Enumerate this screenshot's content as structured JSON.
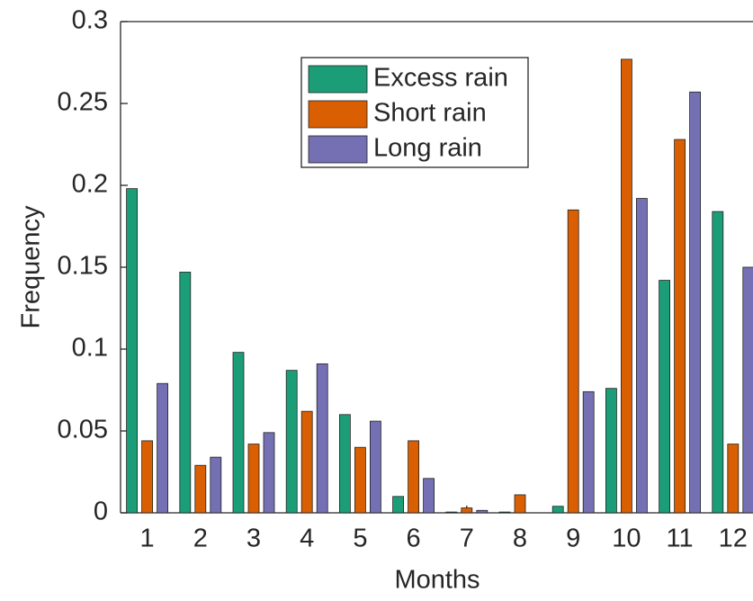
{
  "chart_data": {
    "type": "bar",
    "xlabel": "Months",
    "ylabel": "Frequency",
    "categories": [
      "1",
      "2",
      "3",
      "4",
      "5",
      "6",
      "7",
      "8",
      "9",
      "10",
      "11",
      "12"
    ],
    "series": [
      {
        "name": "Excess rain",
        "color": "#1b9e77",
        "values": [
          0.198,
          0.147,
          0.098,
          0.087,
          0.06,
          0.01,
          0.0005,
          0.0005,
          0.004,
          0.076,
          0.142,
          0.184
        ]
      },
      {
        "name": "Short rain",
        "color": "#d95f02",
        "values": [
          0.044,
          0.029,
          0.042,
          0.062,
          0.04,
          0.044,
          0.003,
          0.011,
          0.185,
          0.277,
          0.228,
          0.042
        ]
      },
      {
        "name": "Long rain",
        "color": "#7570b3",
        "values": [
          0.079,
          0.034,
          0.049,
          0.091,
          0.056,
          0.021,
          0.0015,
          0,
          0.074,
          0.192,
          0.257,
          0.15
        ]
      }
    ],
    "ylim": [
      0,
      0.3
    ],
    "yticks": [
      0,
      0.05,
      0.1,
      0.15,
      0.2,
      0.25,
      0.3
    ],
    "grid": false,
    "legend": "top"
  }
}
